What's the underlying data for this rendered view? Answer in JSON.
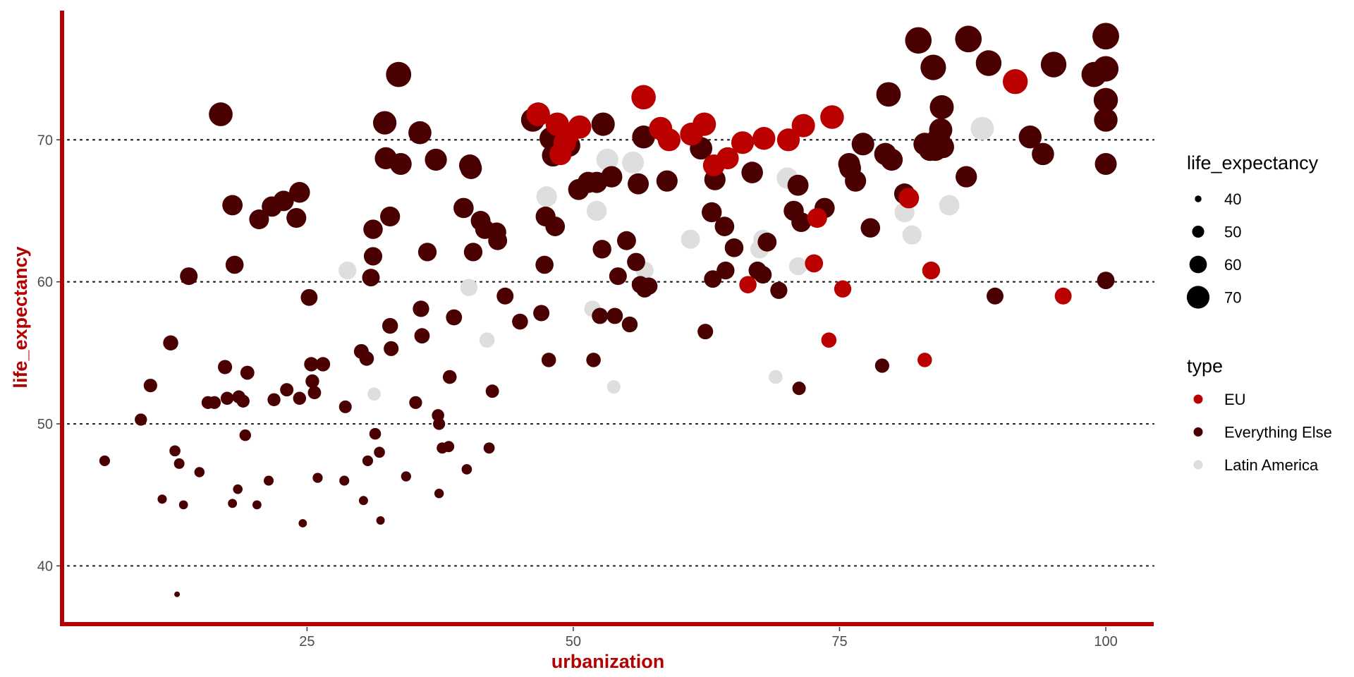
{
  "chart_data": {
    "type": "scatter",
    "title": "",
    "xlabel": "urbanization",
    "ylabel": "life_expectancy",
    "xlim": [
      2,
      104.5
    ],
    "ylim": [
      35.9,
      79.1
    ],
    "x_ticks": [
      25,
      50,
      75,
      100
    ],
    "y_ticks": [
      40,
      50,
      60,
      70
    ],
    "grid": "dotted horizontal major gridlines only",
    "size_legend": {
      "title": "life_expectancy",
      "entries": [
        {
          "label": "40",
          "value": 40
        },
        {
          "label": "50",
          "value": 50
        },
        {
          "label": "60",
          "value": 60
        },
        {
          "label": "70",
          "value": 70
        }
      ]
    },
    "color_legend": {
      "title": "type",
      "entries": [
        {
          "label": "EU",
          "color": "#bb0000"
        },
        {
          "label": "Everything Else",
          "color": "#4a0000"
        },
        {
          "label": "Latin America",
          "color": "#dedede"
        }
      ]
    },
    "series": [
      {
        "name": "Latin America",
        "color": "#dedede",
        "points": [
          [
            28.8,
            60.8
          ],
          [
            31.3,
            52.1
          ],
          [
            40.2,
            59.6
          ],
          [
            41.9,
            55.9
          ],
          [
            47.5,
            66.0
          ],
          [
            48.2,
            64.0
          ],
          [
            51.8,
            58.1
          ],
          [
            52.2,
            65.0
          ],
          [
            53.2,
            68.6
          ],
          [
            53.8,
            52.6
          ],
          [
            55.6,
            68.4
          ],
          [
            56.7,
            60.8
          ],
          [
            61.0,
            63.0
          ],
          [
            67.5,
            62.3
          ],
          [
            67.8,
            63.0
          ],
          [
            69.0,
            53.3
          ],
          [
            70.1,
            67.3
          ],
          [
            71.1,
            61.1
          ],
          [
            81.1,
            64.9
          ],
          [
            81.8,
            63.3
          ],
          [
            85.3,
            65.4
          ],
          [
            88.4,
            70.8
          ]
        ]
      },
      {
        "name": "Everything Else",
        "color": "#4a0000",
        "points": [
          [
            12.8,
            38.0
          ],
          [
            6.0,
            47.4
          ],
          [
            9.4,
            50.3
          ],
          [
            10.3,
            52.7
          ],
          [
            11.4,
            44.7
          ],
          [
            12.2,
            55.7
          ],
          [
            12.6,
            48.1
          ],
          [
            13.0,
            47.2
          ],
          [
            13.4,
            44.3
          ],
          [
            14.9,
            46.6
          ],
          [
            13.9,
            60.4
          ],
          [
            15.7,
            51.5
          ],
          [
            16.3,
            51.5
          ],
          [
            16.9,
            71.8
          ],
          [
            17.3,
            54.0
          ],
          [
            17.5,
            51.8
          ],
          [
            18.0,
            65.4
          ],
          [
            18.0,
            44.4
          ],
          [
            18.2,
            61.2
          ],
          [
            18.5,
            45.4
          ],
          [
            18.6,
            51.9
          ],
          [
            19.0,
            51.6
          ],
          [
            19.2,
            49.2
          ],
          [
            19.4,
            53.6
          ],
          [
            20.3,
            44.3
          ],
          [
            20.5,
            64.4
          ],
          [
            21.4,
            46.0
          ],
          [
            21.7,
            65.3
          ],
          [
            21.9,
            51.7
          ],
          [
            22.8,
            65.7
          ],
          [
            23.1,
            52.4
          ],
          [
            24.0,
            64.5
          ],
          [
            24.3,
            66.3
          ],
          [
            24.3,
            51.8
          ],
          [
            24.6,
            43.0
          ],
          [
            25.2,
            58.9
          ],
          [
            25.4,
            54.2
          ],
          [
            25.5,
            53.0
          ],
          [
            25.7,
            52.2
          ],
          [
            26.0,
            46.2
          ],
          [
            26.5,
            54.2
          ],
          [
            28.5,
            46.0
          ],
          [
            28.6,
            51.2
          ],
          [
            30.1,
            55.1
          ],
          [
            30.3,
            44.6
          ],
          [
            30.6,
            54.6
          ],
          [
            30.7,
            47.4
          ],
          [
            31.0,
            60.3
          ],
          [
            31.2,
            61.8
          ],
          [
            31.2,
            63.7
          ],
          [
            31.4,
            49.3
          ],
          [
            31.8,
            48.0
          ],
          [
            31.9,
            43.2
          ],
          [
            32.3,
            71.2
          ],
          [
            32.4,
            68.7
          ],
          [
            32.8,
            64.6
          ],
          [
            32.8,
            56.9
          ],
          [
            32.9,
            55.3
          ],
          [
            33.6,
            74.6
          ],
          [
            33.8,
            68.3
          ],
          [
            34.3,
            46.3
          ],
          [
            35.2,
            51.5
          ],
          [
            35.6,
            70.5
          ],
          [
            35.7,
            58.1
          ],
          [
            35.8,
            56.2
          ],
          [
            36.3,
            62.1
          ],
          [
            37.1,
            68.6
          ],
          [
            37.3,
            50.6
          ],
          [
            37.4,
            50.0
          ],
          [
            37.4,
            45.1
          ],
          [
            37.7,
            48.3
          ],
          [
            38.3,
            48.4
          ],
          [
            38.4,
            53.3
          ],
          [
            38.8,
            57.5
          ],
          [
            39.7,
            65.2
          ],
          [
            40.0,
            46.8
          ],
          [
            40.3,
            68.2
          ],
          [
            40.4,
            68.0
          ],
          [
            40.6,
            62.1
          ],
          [
            41.3,
            64.3
          ],
          [
            41.7,
            63.7
          ],
          [
            42.1,
            48.3
          ],
          [
            42.4,
            52.3
          ],
          [
            42.8,
            63.5
          ],
          [
            42.9,
            62.9
          ],
          [
            43.6,
            59.0
          ],
          [
            45.0,
            57.2
          ],
          [
            46.2,
            71.4
          ],
          [
            47.0,
            57.8
          ],
          [
            47.3,
            61.2
          ],
          [
            47.4,
            64.6
          ],
          [
            47.7,
            54.5
          ],
          [
            47.9,
            70.1
          ],
          [
            48.1,
            68.9
          ],
          [
            48.3,
            63.9
          ],
          [
            49.1,
            70.0
          ],
          [
            49.3,
            70.4
          ],
          [
            49.6,
            69.6
          ],
          [
            50.5,
            66.5
          ],
          [
            51.4,
            67.0
          ],
          [
            51.9,
            54.5
          ],
          [
            52.2,
            67.0
          ],
          [
            52.5,
            57.6
          ],
          [
            52.7,
            62.3
          ],
          [
            52.8,
            71.1
          ],
          [
            53.6,
            67.4
          ],
          [
            53.9,
            57.6
          ],
          [
            54.2,
            60.4
          ],
          [
            55.0,
            62.9
          ],
          [
            55.3,
            57.0
          ],
          [
            55.9,
            61.4
          ],
          [
            56.1,
            66.9
          ],
          [
            56.3,
            59.8
          ],
          [
            56.6,
            70.2
          ],
          [
            56.7,
            59.5
          ],
          [
            57.1,
            59.7
          ],
          [
            58.8,
            67.1
          ],
          [
            62.0,
            69.4
          ],
          [
            62.4,
            56.5
          ],
          [
            63.0,
            64.9
          ],
          [
            63.1,
            60.2
          ],
          [
            63.3,
            67.2
          ],
          [
            64.2,
            63.9
          ],
          [
            64.3,
            60.8
          ],
          [
            65.1,
            62.4
          ],
          [
            66.8,
            67.7
          ],
          [
            67.3,
            60.8
          ],
          [
            67.8,
            60.5
          ],
          [
            68.2,
            62.8
          ],
          [
            69.3,
            59.4
          ],
          [
            70.7,
            65.0
          ],
          [
            71.1,
            66.8
          ],
          [
            71.2,
            52.5
          ],
          [
            71.4,
            64.2
          ],
          [
            73.6,
            65.2
          ],
          [
            75.9,
            68.3
          ],
          [
            76.0,
            68.0
          ],
          [
            76.5,
            67.1
          ],
          [
            77.2,
            69.7
          ],
          [
            77.9,
            63.8
          ],
          [
            79.0,
            54.1
          ],
          [
            79.3,
            69.0
          ],
          [
            79.6,
            73.2
          ],
          [
            79.9,
            68.6
          ],
          [
            81.1,
            66.2
          ],
          [
            82.4,
            77.0
          ],
          [
            83.0,
            69.7
          ],
          [
            83.5,
            69.3
          ],
          [
            83.8,
            75.1
          ],
          [
            84.0,
            69.3
          ],
          [
            84.3,
            70.1
          ],
          [
            84.5,
            70.7
          ],
          [
            84.6,
            72.3
          ],
          [
            84.7,
            69.5
          ],
          [
            86.9,
            67.4
          ],
          [
            87.1,
            77.1
          ],
          [
            89.0,
            75.4
          ],
          [
            89.6,
            59.0
          ],
          [
            92.9,
            70.2
          ],
          [
            94.1,
            69.0
          ],
          [
            95.1,
            75.3
          ],
          [
            98.9,
            74.6
          ],
          [
            100.0,
            77.3
          ],
          [
            100.0,
            75.0
          ],
          [
            100.0,
            72.8
          ],
          [
            100.0,
            71.4
          ],
          [
            100.0,
            68.3
          ],
          [
            100.0,
            60.1
          ]
        ]
      },
      {
        "name": "EU",
        "color": "#bb0000",
        "points": [
          [
            46.7,
            71.8
          ],
          [
            48.5,
            71.1
          ],
          [
            48.8,
            69.0
          ],
          [
            49.2,
            69.8
          ],
          [
            49.5,
            70.4
          ],
          [
            50.6,
            70.9
          ],
          [
            56.6,
            73.0
          ],
          [
            58.2,
            70.8
          ],
          [
            59.0,
            70.0
          ],
          [
            61.1,
            70.4
          ],
          [
            62.3,
            71.1
          ],
          [
            63.2,
            68.2
          ],
          [
            64.5,
            68.7
          ],
          [
            65.9,
            69.8
          ],
          [
            66.4,
            59.8
          ],
          [
            67.9,
            70.1
          ],
          [
            70.2,
            70.0
          ],
          [
            71.6,
            71.0
          ],
          [
            72.6,
            61.3
          ],
          [
            72.9,
            64.5
          ],
          [
            74.0,
            55.9
          ],
          [
            74.3,
            71.6
          ],
          [
            75.3,
            59.5
          ],
          [
            81.5,
            65.9
          ],
          [
            83.0,
            54.5
          ],
          [
            83.6,
            60.8
          ],
          [
            91.5,
            74.1
          ],
          [
            96.0,
            59.0
          ]
        ]
      }
    ]
  }
}
